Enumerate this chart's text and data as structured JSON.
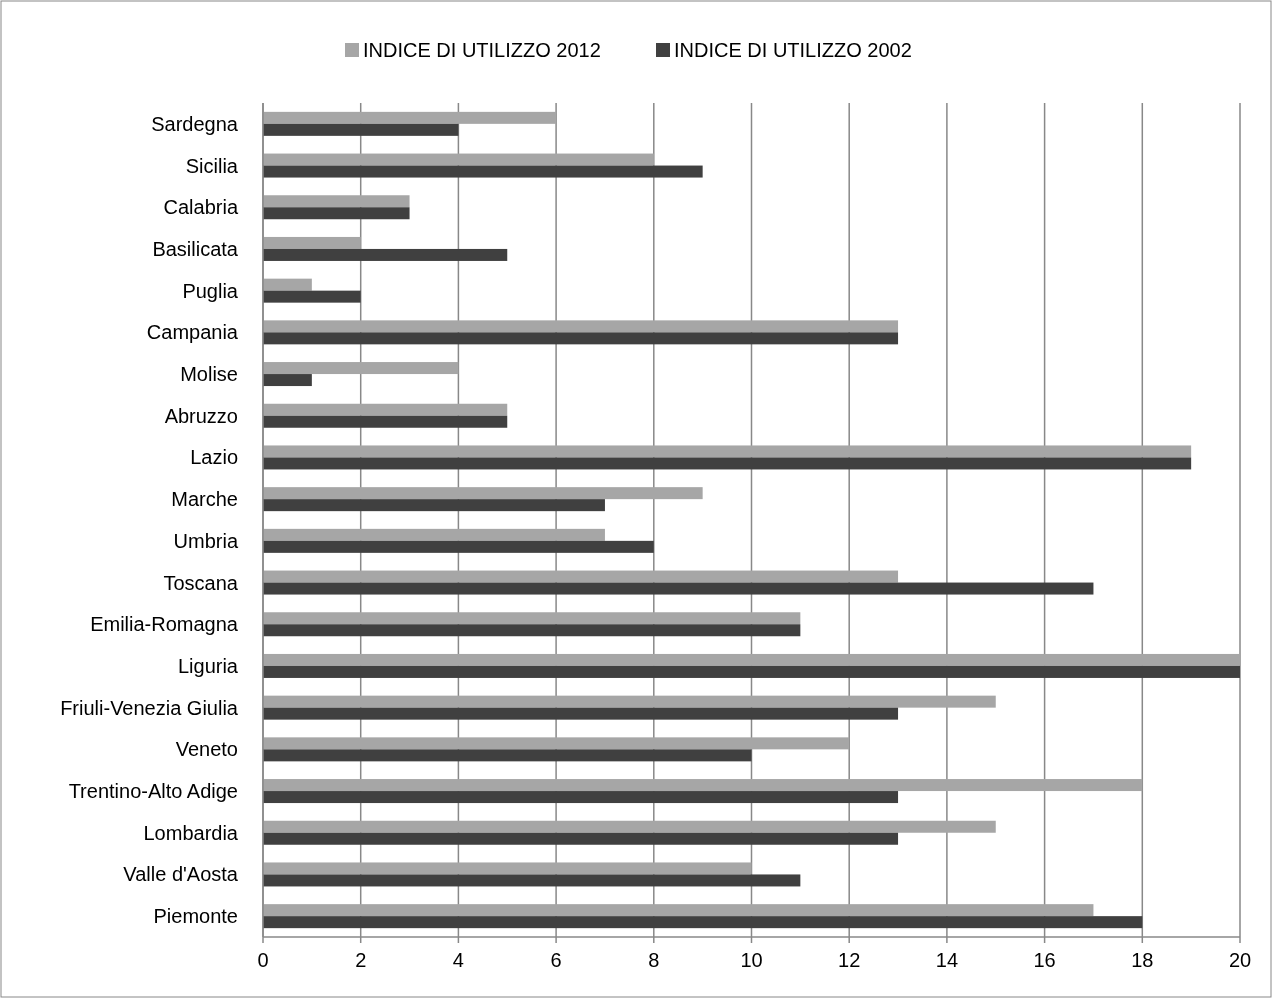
{
  "chart_data": {
    "type": "bar",
    "orientation": "horizontal",
    "categories": [
      "Sardegna",
      "Sicilia",
      "Calabria",
      "Basilicata",
      "Puglia",
      "Campania",
      "Molise",
      "Abruzzo",
      "Lazio",
      "Marche",
      "Umbria",
      "Toscana",
      "Emilia-Romagna",
      "Liguria",
      "Friuli-Venezia Giulia",
      "Veneto",
      "Trentino-Alto Adige",
      "Lombardia",
      "Valle d'Aosta",
      "Piemonte"
    ],
    "series": [
      {
        "name": "INDICE DI UTILIZZO 2012",
        "color": "#a6a6a6",
        "values": [
          6,
          8,
          3,
          2,
          1,
          13,
          4,
          5,
          19,
          9,
          7,
          13,
          11,
          20,
          15,
          12,
          18,
          15,
          10,
          17
        ]
      },
      {
        "name": "INDICE DI UTILIZZO 2002",
        "color": "#404040",
        "values": [
          4,
          9,
          3,
          5,
          2,
          13,
          1,
          5,
          19,
          7,
          8,
          17,
          11,
          20,
          13,
          10,
          13,
          13,
          11,
          18
        ]
      }
    ],
    "xlim": [
      0,
      20
    ],
    "xticks": [
      0,
      2,
      4,
      6,
      8,
      10,
      12,
      14,
      16,
      18,
      20
    ],
    "grid": "x",
    "legend": "top"
  }
}
